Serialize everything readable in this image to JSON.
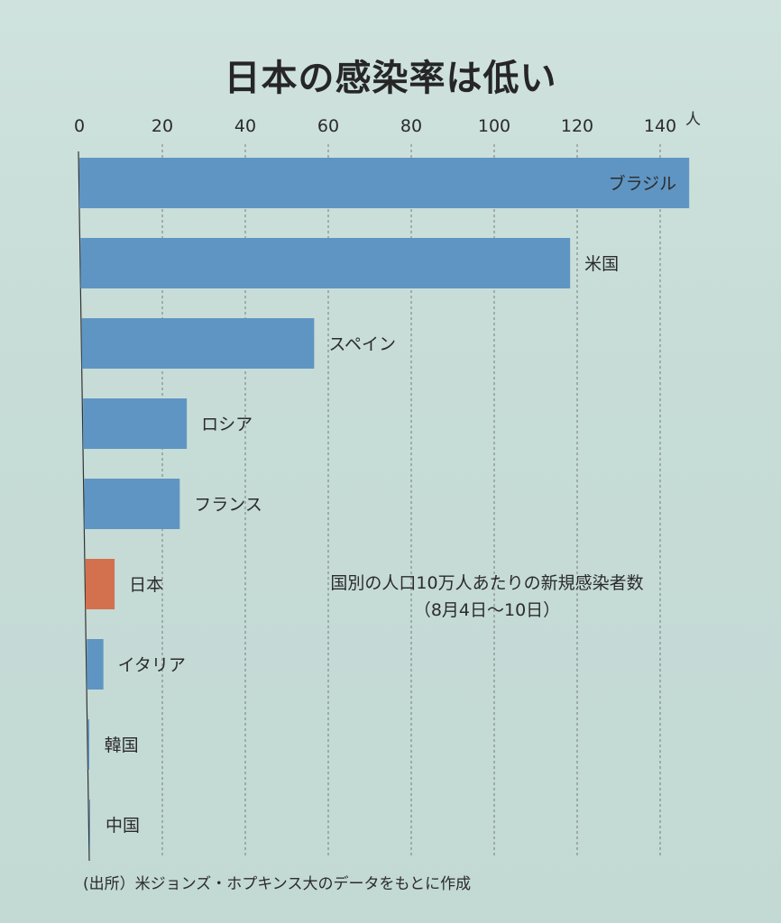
{
  "chart_data": {
    "type": "bar",
    "orientation": "horizontal",
    "title": "日本の感染率は低い",
    "unit": "人",
    "xlim": [
      0,
      150
    ],
    "xticks": [
      0,
      20,
      40,
      60,
      80,
      100,
      120,
      140
    ],
    "grid": true,
    "categories": [
      "ブラジル",
      "米国",
      "スペイン",
      "ロシア",
      "フランス",
      "日本",
      "イタリア",
      "韓国",
      "中国"
    ],
    "values": [
      147,
      118,
      56,
      25,
      23,
      7,
      4,
      0.3,
      0.1
    ],
    "highlight_category": "日本",
    "annotation_line1": "国別の人口10万人あたりの新規感染者数",
    "annotation_line2": "（8月4日～10日）",
    "source": "(出所）米ジョンズ・ホプキンス大のデータをもとに作成"
  },
  "colors": {
    "bar": "#5f95c3",
    "highlight": "#d3714f",
    "grid": "#555555",
    "axis": "#333333"
  }
}
